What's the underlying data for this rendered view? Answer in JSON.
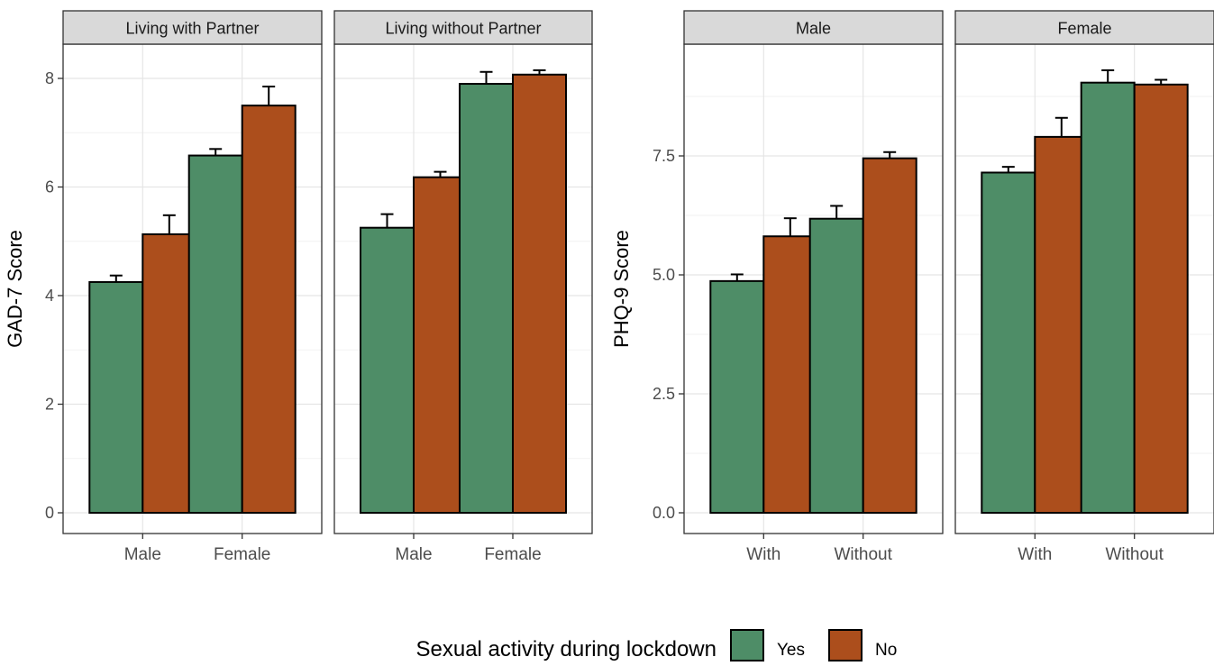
{
  "legend": {
    "title": "Sexual activity during lockdown",
    "items": [
      {
        "label": "Yes",
        "color": "#4e8d67"
      },
      {
        "label": "No",
        "color": "#ac4e1c"
      }
    ]
  },
  "chart_data": [
    {
      "type": "bar",
      "ylabel": "GAD-7 Score",
      "ylim": [
        0,
        8.8
      ],
      "yticks": [
        0,
        2,
        4,
        6,
        8
      ],
      "grid": true,
      "legend_position": "bottom",
      "panels": [
        {
          "strip": "Living with Partner",
          "categories": [
            "Male",
            "Female"
          ],
          "series": [
            {
              "name": "Yes",
              "values": [
                4.25,
                6.58
              ],
              "error": [
                0.12,
                0.12
              ]
            },
            {
              "name": "No",
              "values": [
                5.13,
                7.5
              ],
              "error": [
                0.35,
                0.35
              ]
            }
          ]
        },
        {
          "strip": "Living without Partner",
          "categories": [
            "Male",
            "Female"
          ],
          "series": [
            {
              "name": "Yes",
              "values": [
                5.25,
                7.9
              ],
              "error": [
                0.25,
                0.22
              ]
            },
            {
              "name": "No",
              "values": [
                6.18,
                8.07
              ],
              "error": [
                0.1,
                0.08
              ]
            }
          ]
        }
      ]
    },
    {
      "type": "bar",
      "ylabel": "PHQ-9 Score",
      "ylim": [
        0,
        10
      ],
      "yticks": [
        0,
        2.5,
        5,
        7.5
      ],
      "ytick_labels": [
        "0.0",
        "2.5",
        "5.0",
        "7.5"
      ],
      "grid": true,
      "legend_position": "bottom",
      "panels": [
        {
          "strip": "Male",
          "categories": [
            "With",
            "Without"
          ],
          "series": [
            {
              "name": "Yes",
              "values": [
                4.87,
                6.18
              ],
              "error": [
                0.14,
                0.27
              ]
            },
            {
              "name": "No",
              "values": [
                5.81,
                7.45
              ],
              "error": [
                0.38,
                0.13
              ]
            }
          ]
        },
        {
          "strip": "Female",
          "categories": [
            "With",
            "Without"
          ],
          "series": [
            {
              "name": "Yes",
              "values": [
                7.15,
                9.04
              ],
              "error": [
                0.12,
                0.26
              ]
            },
            {
              "name": "No",
              "values": [
                7.9,
                9.0
              ],
              "error": [
                0.4,
                0.1
              ]
            }
          ]
        }
      ]
    }
  ]
}
